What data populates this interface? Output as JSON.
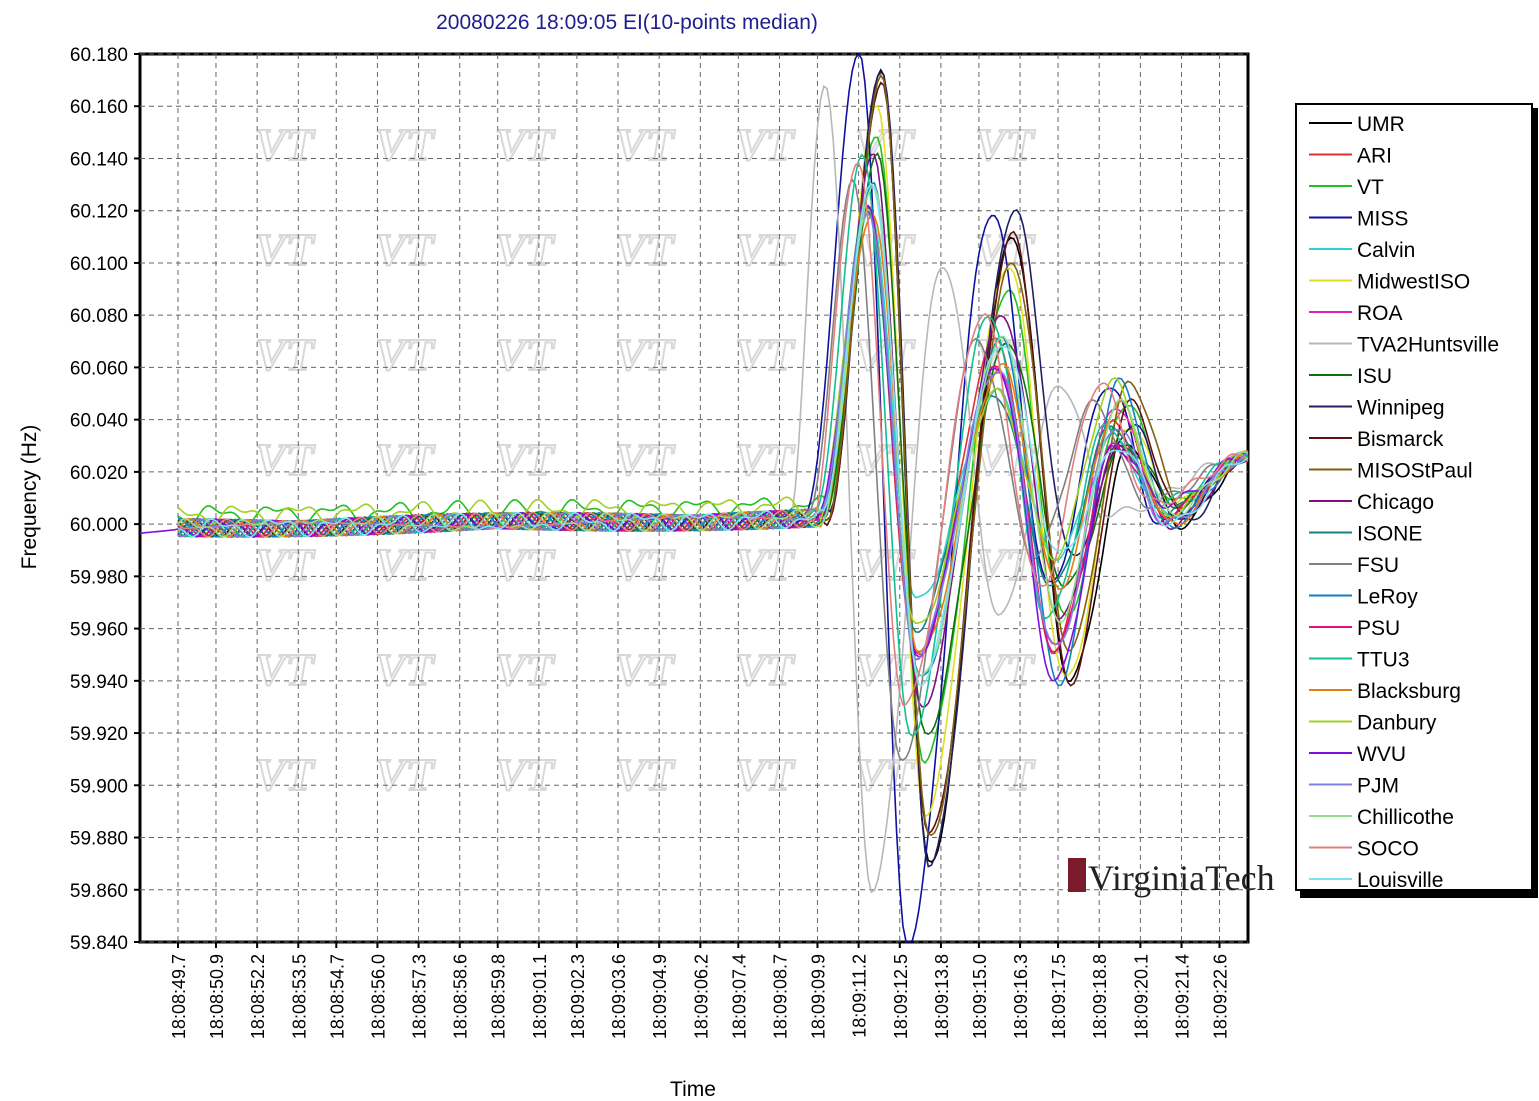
{
  "chart_data": {
    "type": "line",
    "title": "20080226 18:09:05 EI(10-points median)",
    "xlabel": "Time",
    "ylabel": "Frequency (Hz)",
    "ylim": [
      59.84,
      60.18
    ],
    "xlim_seconds": [
      48.5,
      83.5
    ],
    "grid": true,
    "legend_position": "right",
    "y_ticks": [
      "60.180",
      "60.160",
      "60.140",
      "60.120",
      "60.100",
      "60.080",
      "60.060",
      "60.040",
      "60.020",
      "60.000",
      "59.980",
      "59.960",
      "59.940",
      "59.920",
      "59.900",
      "59.880",
      "59.860",
      "59.840"
    ],
    "x_ticks": [
      "18:08:49.7",
      "18:08:50.9",
      "18:08:52.2",
      "18:08:53.5",
      "18:08:54.7",
      "18:08:56.0",
      "18:08:57.3",
      "18:08:58.6",
      "18:08:59.8",
      "18:09:01.1",
      "18:09:02.3",
      "18:09:03.6",
      "18:09:04.9",
      "18:09:06.2",
      "18:09:07.4",
      "18:09:08.7",
      "18:09:09.9",
      "18:09:11.2",
      "18:09:12.5",
      "18:09:13.8",
      "18:09:15.0",
      "18:09:16.3",
      "18:09:17.5",
      "18:09:18.8",
      "18:09:20.1",
      "18:09:21.4",
      "18:09:22.6"
    ],
    "series": [
      {
        "name": "UMR",
        "color": "#000000",
        "onset": 70.2,
        "peak": 60.172,
        "trough": 59.87,
        "swing2": 60.11,
        "lag": 0.55
      },
      {
        "name": "ARI",
        "color": "#e03030",
        "onset": 69.9,
        "peak": 60.12,
        "trough": 59.95,
        "swing2": 60.07,
        "lag": 0.25
      },
      {
        "name": "VT",
        "color": "#20c020",
        "onset": 70.1,
        "peak": 60.15,
        "trough": 59.91,
        "swing2": 60.09,
        "lag": 0.45
      },
      {
        "name": "MISS",
        "color": "#1010a0",
        "onset": 69.5,
        "peak": 60.18,
        "trough": 59.84,
        "swing2": 60.12,
        "lag": 0.6
      },
      {
        "name": "Calvin",
        "color": "#30d0d0",
        "onset": 69.9,
        "peak": 60.12,
        "trough": 59.97,
        "swing2": 60.05,
        "lag": 0.3
      },
      {
        "name": "MidwestISO",
        "color": "#e0e020",
        "onset": 70.1,
        "peak": 60.16,
        "trough": 59.89,
        "swing2": 60.1,
        "lag": 0.5
      },
      {
        "name": "ROA",
        "color": "#e020c0",
        "onset": 69.9,
        "peak": 60.12,
        "trough": 59.95,
        "swing2": 60.06,
        "lag": 0.3
      },
      {
        "name": "TVA2Huntsville",
        "color": "#b8b8b8",
        "onset": 69.0,
        "peak": 60.17,
        "trough": 59.86,
        "swing2": 60.1,
        "lag": -0.9
      },
      {
        "name": "ISU",
        "color": "#107010",
        "onset": 70.1,
        "peak": 60.14,
        "trough": 59.92,
        "swing2": 60.07,
        "lag": 0.5
      },
      {
        "name": "Winnipeg",
        "color": "#202060",
        "onset": 70.2,
        "peak": 60.175,
        "trough": 59.87,
        "swing2": 60.12,
        "lag": 0.6
      },
      {
        "name": "Bismarck",
        "color": "#601010",
        "onset": 70.2,
        "peak": 60.17,
        "trough": 59.88,
        "swing2": 60.11,
        "lag": 0.55
      },
      {
        "name": "MISOStPaul",
        "color": "#806010",
        "onset": 70.2,
        "peak": 60.17,
        "trough": 59.88,
        "swing2": 60.1,
        "lag": 0.55
      },
      {
        "name": "Chicago",
        "color": "#801080",
        "onset": 70.0,
        "peak": 60.14,
        "trough": 59.93,
        "swing2": 60.08,
        "lag": 0.4
      },
      {
        "name": "ISONE",
        "color": "#108080",
        "onset": 69.9,
        "peak": 60.12,
        "trough": 59.96,
        "swing2": 60.05,
        "lag": 0.2
      },
      {
        "name": "FSU",
        "color": "#808080",
        "onset": 69.6,
        "peak": 60.13,
        "trough": 59.91,
        "swing2": 60.07,
        "lag": -0.2
      },
      {
        "name": "LeRoy",
        "color": "#1080c0",
        "onset": 70.0,
        "peak": 60.13,
        "trough": 59.94,
        "swing2": 60.07,
        "lag": 0.35
      },
      {
        "name": "PSU",
        "color": "#e01080",
        "onset": 69.9,
        "peak": 60.12,
        "trough": 59.95,
        "swing2": 60.06,
        "lag": 0.3
      },
      {
        "name": "TTU3",
        "color": "#10c090",
        "onset": 69.8,
        "peak": 60.14,
        "trough": 59.92,
        "swing2": 60.08,
        "lag": 0.1
      },
      {
        "name": "Blacksburg",
        "color": "#e08010",
        "onset": 70.0,
        "peak": 60.12,
        "trough": 59.95,
        "swing2": 60.06,
        "lag": 0.3
      },
      {
        "name": "Danbury",
        "color": "#a0d020",
        "onset": 69.9,
        "peak": 60.12,
        "trough": 59.96,
        "swing2": 60.05,
        "lag": 0.25
      },
      {
        "name": "WVU",
        "color": "#8010e0",
        "onset": 69.9,
        "peak": 60.12,
        "trough": 59.95,
        "swing2": 60.06,
        "lag": 0.3
      },
      {
        "name": "PJM",
        "color": "#8080e0",
        "onset": 69.9,
        "peak": 60.12,
        "trough": 59.95,
        "swing2": 60.06,
        "lag": 0.3
      },
      {
        "name": "Chillicothe",
        "color": "#90e090",
        "onset": 70.0,
        "peak": 60.13,
        "trough": 59.94,
        "swing2": 60.07,
        "lag": 0.35
      },
      {
        "name": "SOCO",
        "color": "#e08080",
        "onset": 69.7,
        "peak": 60.14,
        "trough": 59.93,
        "swing2": 60.08,
        "lag": -0.1
      },
      {
        "name": "Louisville",
        "color": "#80e0f0",
        "onset": 70.0,
        "peak": 60.13,
        "trough": 59.94,
        "swing2": 60.07,
        "lag": 0.35
      }
    ]
  },
  "logo": {
    "text": "VirginiaTech"
  },
  "watermark": {
    "text": "VT"
  }
}
